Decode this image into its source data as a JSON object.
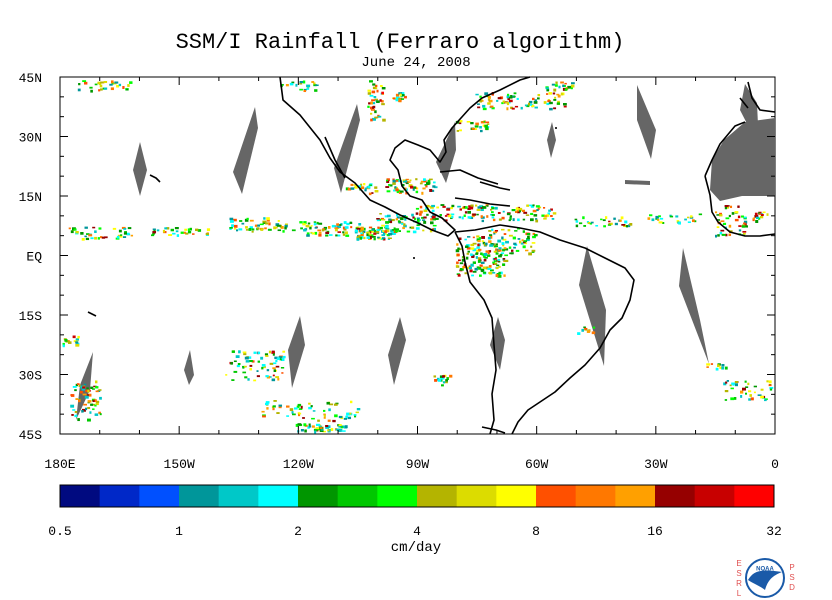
{
  "title": "SSM/I Rainfall (Ferraro algorithm)",
  "date": "June 24, 2008",
  "unit_label": "cm/day",
  "map": {
    "lon_range": [
      -180,
      0
    ],
    "lat_range": [
      -45,
      45
    ],
    "lat_ticks": [
      {
        "value": 45,
        "label": "45N"
      },
      {
        "value": 30,
        "label": "30N"
      },
      {
        "value": 15,
        "label": "15N"
      },
      {
        "value": 0,
        "label": "EQ"
      },
      {
        "value": -15,
        "label": "15S"
      },
      {
        "value": -30,
        "label": "30S"
      },
      {
        "value": -45,
        "label": "45S"
      }
    ],
    "lon_ticks": [
      {
        "value": -180,
        "label": "180E"
      },
      {
        "value": -150,
        "label": "150W"
      },
      {
        "value": -120,
        "label": "120W"
      },
      {
        "value": -90,
        "label": "90W"
      },
      {
        "value": -60,
        "label": "60W"
      },
      {
        "value": -30,
        "label": "30W"
      },
      {
        "value": 0,
        "label": "0"
      }
    ],
    "no_data_color": "#666666",
    "coast_color": "#000000"
  },
  "colorbar": {
    "colors": [
      "#000a80",
      "#0028c8",
      "#0050ff",
      "#00969a",
      "#00c8c8",
      "#00ffff",
      "#009600",
      "#00c800",
      "#00ff00",
      "#b4b400",
      "#dcdc00",
      "#ffff00",
      "#ff5000",
      "#ff7800",
      "#ffa000",
      "#960000",
      "#c80000",
      "#ff0000"
    ],
    "labels": [
      "0.5",
      "1",
      "2",
      "4",
      "8",
      "16",
      "32"
    ]
  },
  "logo": {
    "left_letters": "ESRL",
    "right_letters": "PSD",
    "center_text": "NOAA",
    "letters_color": "#e05050",
    "globe_color": "#1a5aa8"
  }
}
